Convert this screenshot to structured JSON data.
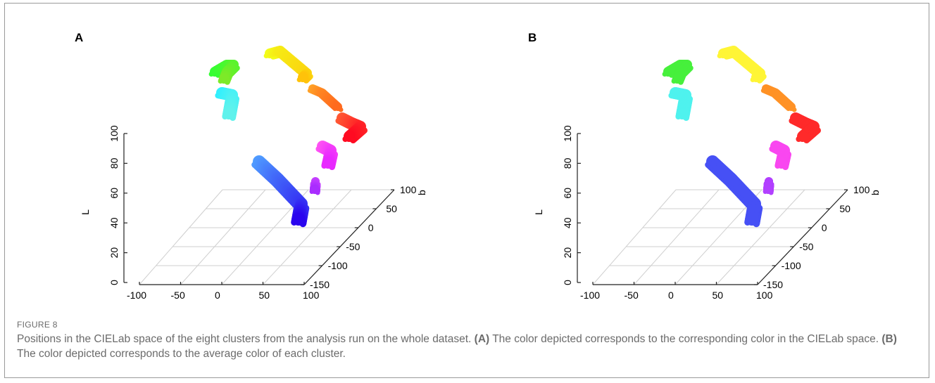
{
  "chart_data": [
    {
      "type": "scatter",
      "projection": "3d",
      "panel_label": "A",
      "color_mode": "cielab-position",
      "zlabel": "L",
      "ylabel": "b",
      "xlabel": "",
      "x_ticks": [
        "-100",
        "-50",
        "0",
        "50",
        "100"
      ],
      "y_ticks": [
        "-150",
        "-100",
        "-50",
        "0",
        "50",
        "100"
      ],
      "z_ticks": [
        "0",
        "20",
        "40",
        "60",
        "80",
        "100"
      ],
      "xlim": [
        -100,
        100
      ],
      "ylim": [
        -150,
        100
      ],
      "zlim": [
        0,
        100
      ],
      "grid": true,
      "clusters": [
        {
          "cluster": "yellow",
          "color_start": "#f2ff1a",
          "color_end": "#ffc20a"
        },
        {
          "cluster": "green",
          "color_start": "#33ff33",
          "color_end": "#7dea28"
        },
        {
          "cluster": "cyan",
          "color_start": "#2ff0ff",
          "color_end": "#5ff2ec"
        },
        {
          "cluster": "orange",
          "color_start": "#ffa428",
          "color_end": "#ff6a1e"
        },
        {
          "cluster": "red",
          "color_start": "#ff5a34",
          "color_end": "#ff0b22"
        },
        {
          "cluster": "magenta",
          "color_start": "#ff55f3",
          "color_end": "#e828ff"
        },
        {
          "cluster": "purple",
          "color_start": "#c843ff",
          "color_end": "#a92dff"
        },
        {
          "cluster": "blue",
          "color_start": "#4f9cff",
          "color_end": "#2a05ee"
        }
      ]
    },
    {
      "type": "scatter",
      "projection": "3d",
      "panel_label": "B",
      "color_mode": "cluster-average",
      "zlabel": "L",
      "ylabel": "b",
      "xlabel": "",
      "x_ticks": [
        "-100",
        "-50",
        "0",
        "50",
        "100"
      ],
      "y_ticks": [
        "-150",
        "-100",
        "-50",
        "0",
        "50",
        "100"
      ],
      "z_ticks": [
        "0",
        "20",
        "40",
        "60",
        "80",
        "100"
      ],
      "xlim": [
        -100,
        100
      ],
      "ylim": [
        -150,
        100
      ],
      "zlim": [
        0,
        100
      ],
      "grid": true,
      "clusters": [
        {
          "cluster": "yellow",
          "color_start": "#fff536",
          "color_end": "#fff536"
        },
        {
          "cluster": "green",
          "color_start": "#47f03c",
          "color_end": "#47f03c"
        },
        {
          "cluster": "cyan",
          "color_start": "#4ff2ee",
          "color_end": "#4ff2ee"
        },
        {
          "cluster": "orange",
          "color_start": "#ff9226",
          "color_end": "#ff9226"
        },
        {
          "cluster": "red",
          "color_start": "#ff2a2a",
          "color_end": "#ff2a2a"
        },
        {
          "cluster": "magenta",
          "color_start": "#f947f0",
          "color_end": "#f947f0"
        },
        {
          "cluster": "purple",
          "color_start": "#b240ff",
          "color_end": "#b240ff"
        },
        {
          "cluster": "blue",
          "color_start": "#4650f5",
          "color_end": "#4650f5"
        }
      ]
    }
  ],
  "caption": {
    "figure_label": "FIGURE 8",
    "intro": "Positions in the CIELab space of the eight clusters from the analysis run on the whole dataset.",
    "a_label": "(A)",
    "a_text": "The color depicted corresponds to the corresponding color in the CIELab space.",
    "b_label": "(B)",
    "b_text": "The color depicted corresponds to the average color of each cluster."
  }
}
